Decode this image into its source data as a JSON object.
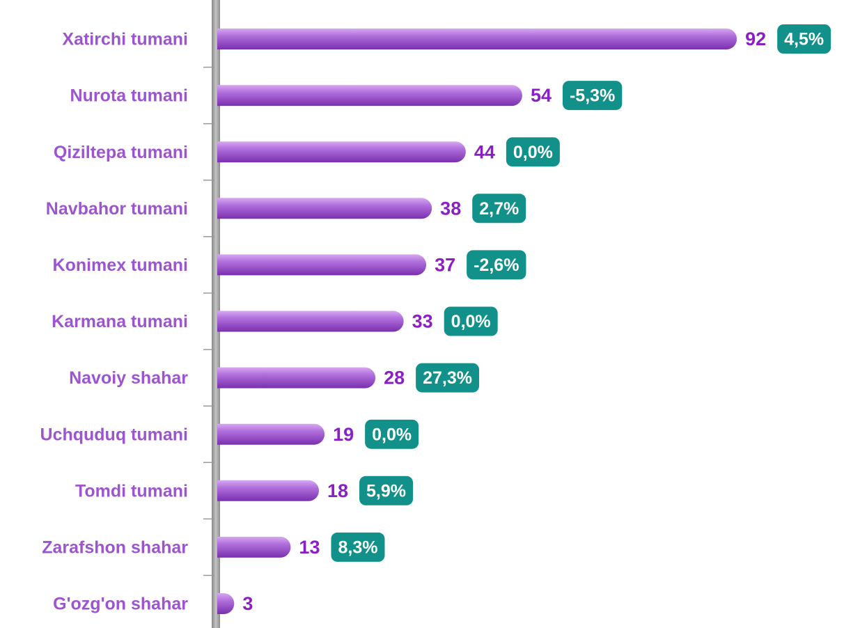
{
  "chart_data": {
    "type": "bar",
    "orientation": "horizontal",
    "categories": [
      "Xatirchi tumani",
      "Nurota tumani",
      "Qiziltepa tumani",
      "Navbahor tumani",
      "Konimex tumani",
      "Karmana tumani",
      "Navoiy shahar",
      "Uchquduq tumani",
      "Tomdi tumani",
      "Zarafshon shahar",
      "G'ozg'on shahar"
    ],
    "values": [
      92,
      54,
      44,
      38,
      37,
      33,
      28,
      19,
      18,
      13,
      3
    ],
    "color": "#a05ad0",
    "xlim": [
      0,
      100
    ],
    "changes": {
      "color": "#11918a",
      "values": [
        4.5,
        -5.3,
        0.0,
        2.7,
        -2.6,
        0.0,
        27.3,
        0.0,
        5.9,
        8.3,
        null
      ],
      "value_labels": [
        "4,5%",
        "-5,3%",
        "0,0%",
        "2,7%",
        "-2,6%",
        "0,0%",
        "27,3%",
        "0,0%",
        "5,9%",
        "8,3%",
        null
      ]
    }
  }
}
